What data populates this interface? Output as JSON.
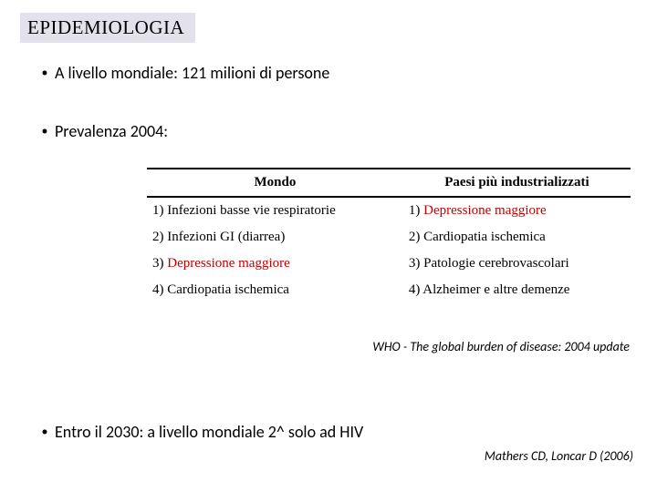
{
  "title": "EPIDEMIOLOGIA",
  "bullets": {
    "b1": "A livello mondiale: 121 milioni di persone",
    "b2": "Prevalenza 2004:",
    "b3": "Entro il 2030: a livello mondiale 2^ solo ad HIV"
  },
  "table": {
    "headers": {
      "col1": "Mondo",
      "col2": "Paesi più industrializzati"
    },
    "rows": [
      {
        "c1a": "1) Infezioni basse vie respiratorie",
        "c2a": "1) ",
        "c2b": "Depressione maggiore"
      },
      {
        "c1a": "2) Infezioni GI (diarrea)",
        "c2a": "2) Cardiopatia ischemica",
        "c2b": ""
      },
      {
        "c1a": "3) ",
        "c1b": "Depressione maggiore",
        "c2a": "3) Patologie cerebrovascolari",
        "c2b": ""
      },
      {
        "c1a": "4) Cardiopatia ischemica",
        "c2a": "4) Alzheimer e altre demenze",
        "c2b": ""
      }
    ]
  },
  "citations": {
    "c1": "WHO - The global burden of disease: 2004 update",
    "c2": "Mathers CD, Loncar D (2006)"
  },
  "colors": {
    "title_bg": "#e3e2ec",
    "highlight": "#c00000",
    "text": "#000000",
    "background": "#ffffff"
  }
}
